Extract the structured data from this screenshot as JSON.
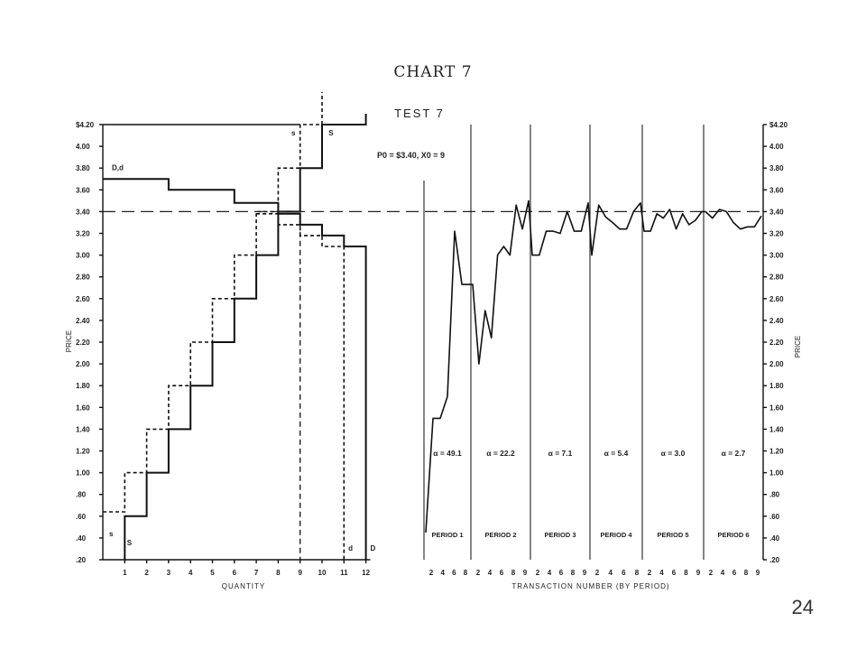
{
  "page": {
    "title": "CHART 7",
    "slide_number": "24"
  },
  "chart_data": {
    "type": "line",
    "subtitle": "TEST 7",
    "ylabel": "PRICE",
    "xlabel_left": "QUANTITY",
    "xlabel_right": "TRANSACTION NUMBER (BY PERIOD)",
    "ylim": [
      0.2,
      4.2
    ],
    "y_ticks_left": [
      {
        "v": 4.2,
        "label": "$4.20"
      },
      {
        "v": 4.0,
        "label": "4.00"
      },
      {
        "v": 3.8,
        "label": "3.80"
      },
      {
        "v": 3.6,
        "label": "3.60"
      },
      {
        "v": 3.4,
        "label": "3.40"
      },
      {
        "v": 3.2,
        "label": "3.20"
      },
      {
        "v": 3.0,
        "label": "3.00"
      },
      {
        "v": 2.8,
        "label": "2.80"
      },
      {
        "v": 2.6,
        "label": "2.60"
      },
      {
        "v": 2.4,
        "label": "2.40"
      },
      {
        "v": 2.2,
        "label": "2.20"
      },
      {
        "v": 2.0,
        "label": "2.00"
      },
      {
        "v": 1.8,
        "label": "1.80"
      },
      {
        "v": 1.6,
        "label": "1.60"
      },
      {
        "v": 1.4,
        "label": "1.40"
      },
      {
        "v": 1.2,
        "label": "1.20"
      },
      {
        "v": 1.0,
        "label": "1.00"
      },
      {
        "v": 0.8,
        "label": ".80"
      },
      {
        "v": 0.6,
        "label": ".60"
      },
      {
        "v": 0.4,
        "label": ".40"
      },
      {
        "v": 0.2,
        "label": ".20"
      }
    ],
    "y_ticks_right": [
      {
        "v": 4.2,
        "label": "$4.20"
      },
      {
        "v": 4.0,
        "label": "4.00"
      },
      {
        "v": 3.8,
        "label": "3.80"
      },
      {
        "v": 3.6,
        "label": "3.60"
      },
      {
        "v": 3.4,
        "label": "3.40"
      },
      {
        "v": 3.2,
        "label": "3.20"
      },
      {
        "v": 3.0,
        "label": "3.00"
      },
      {
        "v": 2.8,
        "label": "2.80"
      },
      {
        "v": 2.6,
        "label": "2.60"
      },
      {
        "v": 2.4,
        "label": "2.40"
      },
      {
        "v": 2.2,
        "label": "2.20"
      },
      {
        "v": 2.0,
        "label": "2.00"
      },
      {
        "v": 1.8,
        "label": "1.80"
      },
      {
        "v": 1.6,
        "label": "1.60"
      },
      {
        "v": 1.4,
        "label": "1.40"
      },
      {
        "v": 1.2,
        "label": "1.20"
      },
      {
        "v": 1.0,
        "label": "1.00"
      },
      {
        "v": 0.8,
        "label": ".80"
      },
      {
        "v": 0.6,
        "label": ".60"
      },
      {
        "v": 0.4,
        "label": ".40"
      },
      {
        "v": 0.2,
        "label": ".20"
      }
    ],
    "quantity_ticks": [
      "1",
      "2",
      "3",
      "4",
      "5",
      "6",
      "7",
      "8",
      "9",
      "10",
      "11",
      "12"
    ],
    "equilibrium": {
      "label": "P0 = $3.40,  X0 = 9",
      "price": 3.4,
      "quantity": 9
    },
    "demand_D": [
      [
        0,
        3.7
      ],
      [
        3,
        3.7
      ],
      [
        3,
        3.6
      ],
      [
        6,
        3.6
      ],
      [
        6,
        3.48
      ],
      [
        8,
        3.48
      ],
      [
        8,
        3.38
      ],
      [
        9,
        3.38
      ],
      [
        9,
        3.28
      ],
      [
        10,
        3.28
      ],
      [
        10,
        3.18
      ],
      [
        11,
        3.18
      ],
      [
        11,
        3.08
      ],
      [
        12,
        3.08
      ],
      [
        12,
        0.2
      ]
    ],
    "demand_d": [
      [
        7,
        3.38
      ],
      [
        8,
        3.38
      ],
      [
        8,
        3.28
      ],
      [
        9,
        3.28
      ],
      [
        9,
        3.18
      ],
      [
        10,
        3.18
      ],
      [
        10,
        3.08
      ],
      [
        11,
        3.08
      ],
      [
        11,
        0.2
      ]
    ],
    "supply_S": [
      [
        1,
        0.2
      ],
      [
        1,
        0.6
      ],
      [
        2,
        0.6
      ],
      [
        2,
        1.0
      ],
      [
        3,
        1.0
      ],
      [
        3,
        1.4
      ],
      [
        4,
        1.4
      ],
      [
        4,
        1.8
      ],
      [
        5,
        1.8
      ],
      [
        5,
        2.2
      ],
      [
        6,
        2.2
      ],
      [
        6,
        2.6
      ],
      [
        7,
        2.6
      ],
      [
        7,
        3.0
      ],
      [
        8,
        3.0
      ],
      [
        8,
        3.4
      ],
      [
        9,
        3.4
      ],
      [
        9,
        3.8
      ],
      [
        10,
        3.8
      ],
      [
        10,
        4.2
      ],
      [
        12,
        4.2
      ],
      [
        12,
        4.3
      ]
    ],
    "supply_s": [
      [
        0,
        0.64
      ],
      [
        1,
        0.64
      ],
      [
        1,
        1.0
      ],
      [
        2,
        1.0
      ],
      [
        2,
        1.4
      ],
      [
        3,
        1.4
      ],
      [
        3,
        1.8
      ],
      [
        4,
        1.8
      ],
      [
        4,
        2.2
      ],
      [
        5,
        2.2
      ],
      [
        5,
        2.6
      ],
      [
        6,
        2.6
      ],
      [
        6,
        3.0
      ],
      [
        7,
        3.0
      ],
      [
        7,
        3.4
      ],
      [
        8,
        3.4
      ],
      [
        8,
        3.8
      ],
      [
        9,
        3.8
      ],
      [
        9,
        4.2
      ],
      [
        10,
        4.2
      ],
      [
        10,
        4.5
      ]
    ],
    "curve_labels": {
      "Dd": "D,d",
      "D": "D",
      "d": "d",
      "S_top": "S",
      "s_top": "s",
      "S_bottom": "S",
      "s_bottom": "s"
    },
    "periods": [
      {
        "label": "PERIOD 1",
        "alpha": "α = 49.1",
        "ticks": [
          "2",
          "4",
          "6",
          "8"
        ],
        "prices": [
          0.45,
          1.5,
          1.5,
          1.7,
          3.22,
          2.73,
          2.73
        ]
      },
      {
        "label": "PERIOD 2",
        "alpha": "α = 22.2",
        "ticks": [
          "2",
          "4",
          "6",
          "8",
          "9"
        ],
        "prices": [
          2.73,
          2.0,
          2.49,
          2.24,
          3.0,
          3.08,
          3.0,
          3.46,
          3.24,
          3.5
        ]
      },
      {
        "label": "PERIOD 3",
        "alpha": "α = 7.1",
        "ticks": [
          "2",
          "4",
          "6",
          "8",
          "9"
        ],
        "prices": [
          3.0,
          3.0,
          3.22,
          3.22,
          3.2,
          3.4,
          3.22,
          3.22,
          3.48
        ]
      },
      {
        "label": "PERIOD 4",
        "alpha": "α = 5.4",
        "ticks": [
          "2",
          "4",
          "6",
          "8"
        ],
        "prices": [
          3.0,
          3.46,
          3.35,
          3.3,
          3.24,
          3.24,
          3.4,
          3.48
        ]
      },
      {
        "label": "PERIOD 5",
        "alpha": "α = 3.0",
        "ticks": [
          "2",
          "4",
          "6",
          "8",
          "9"
        ],
        "prices": [
          3.22,
          3.22,
          3.38,
          3.34,
          3.42,
          3.24,
          3.38,
          3.28,
          3.32,
          3.4
        ]
      },
      {
        "label": "PERIOD 6",
        "alpha": "α = 2.7",
        "ticks": [
          "2",
          "4",
          "6",
          "8",
          "9"
        ],
        "prices": [
          3.4,
          3.34,
          3.42,
          3.4,
          3.3,
          3.24,
          3.26,
          3.26,
          3.36
        ]
      }
    ]
  }
}
